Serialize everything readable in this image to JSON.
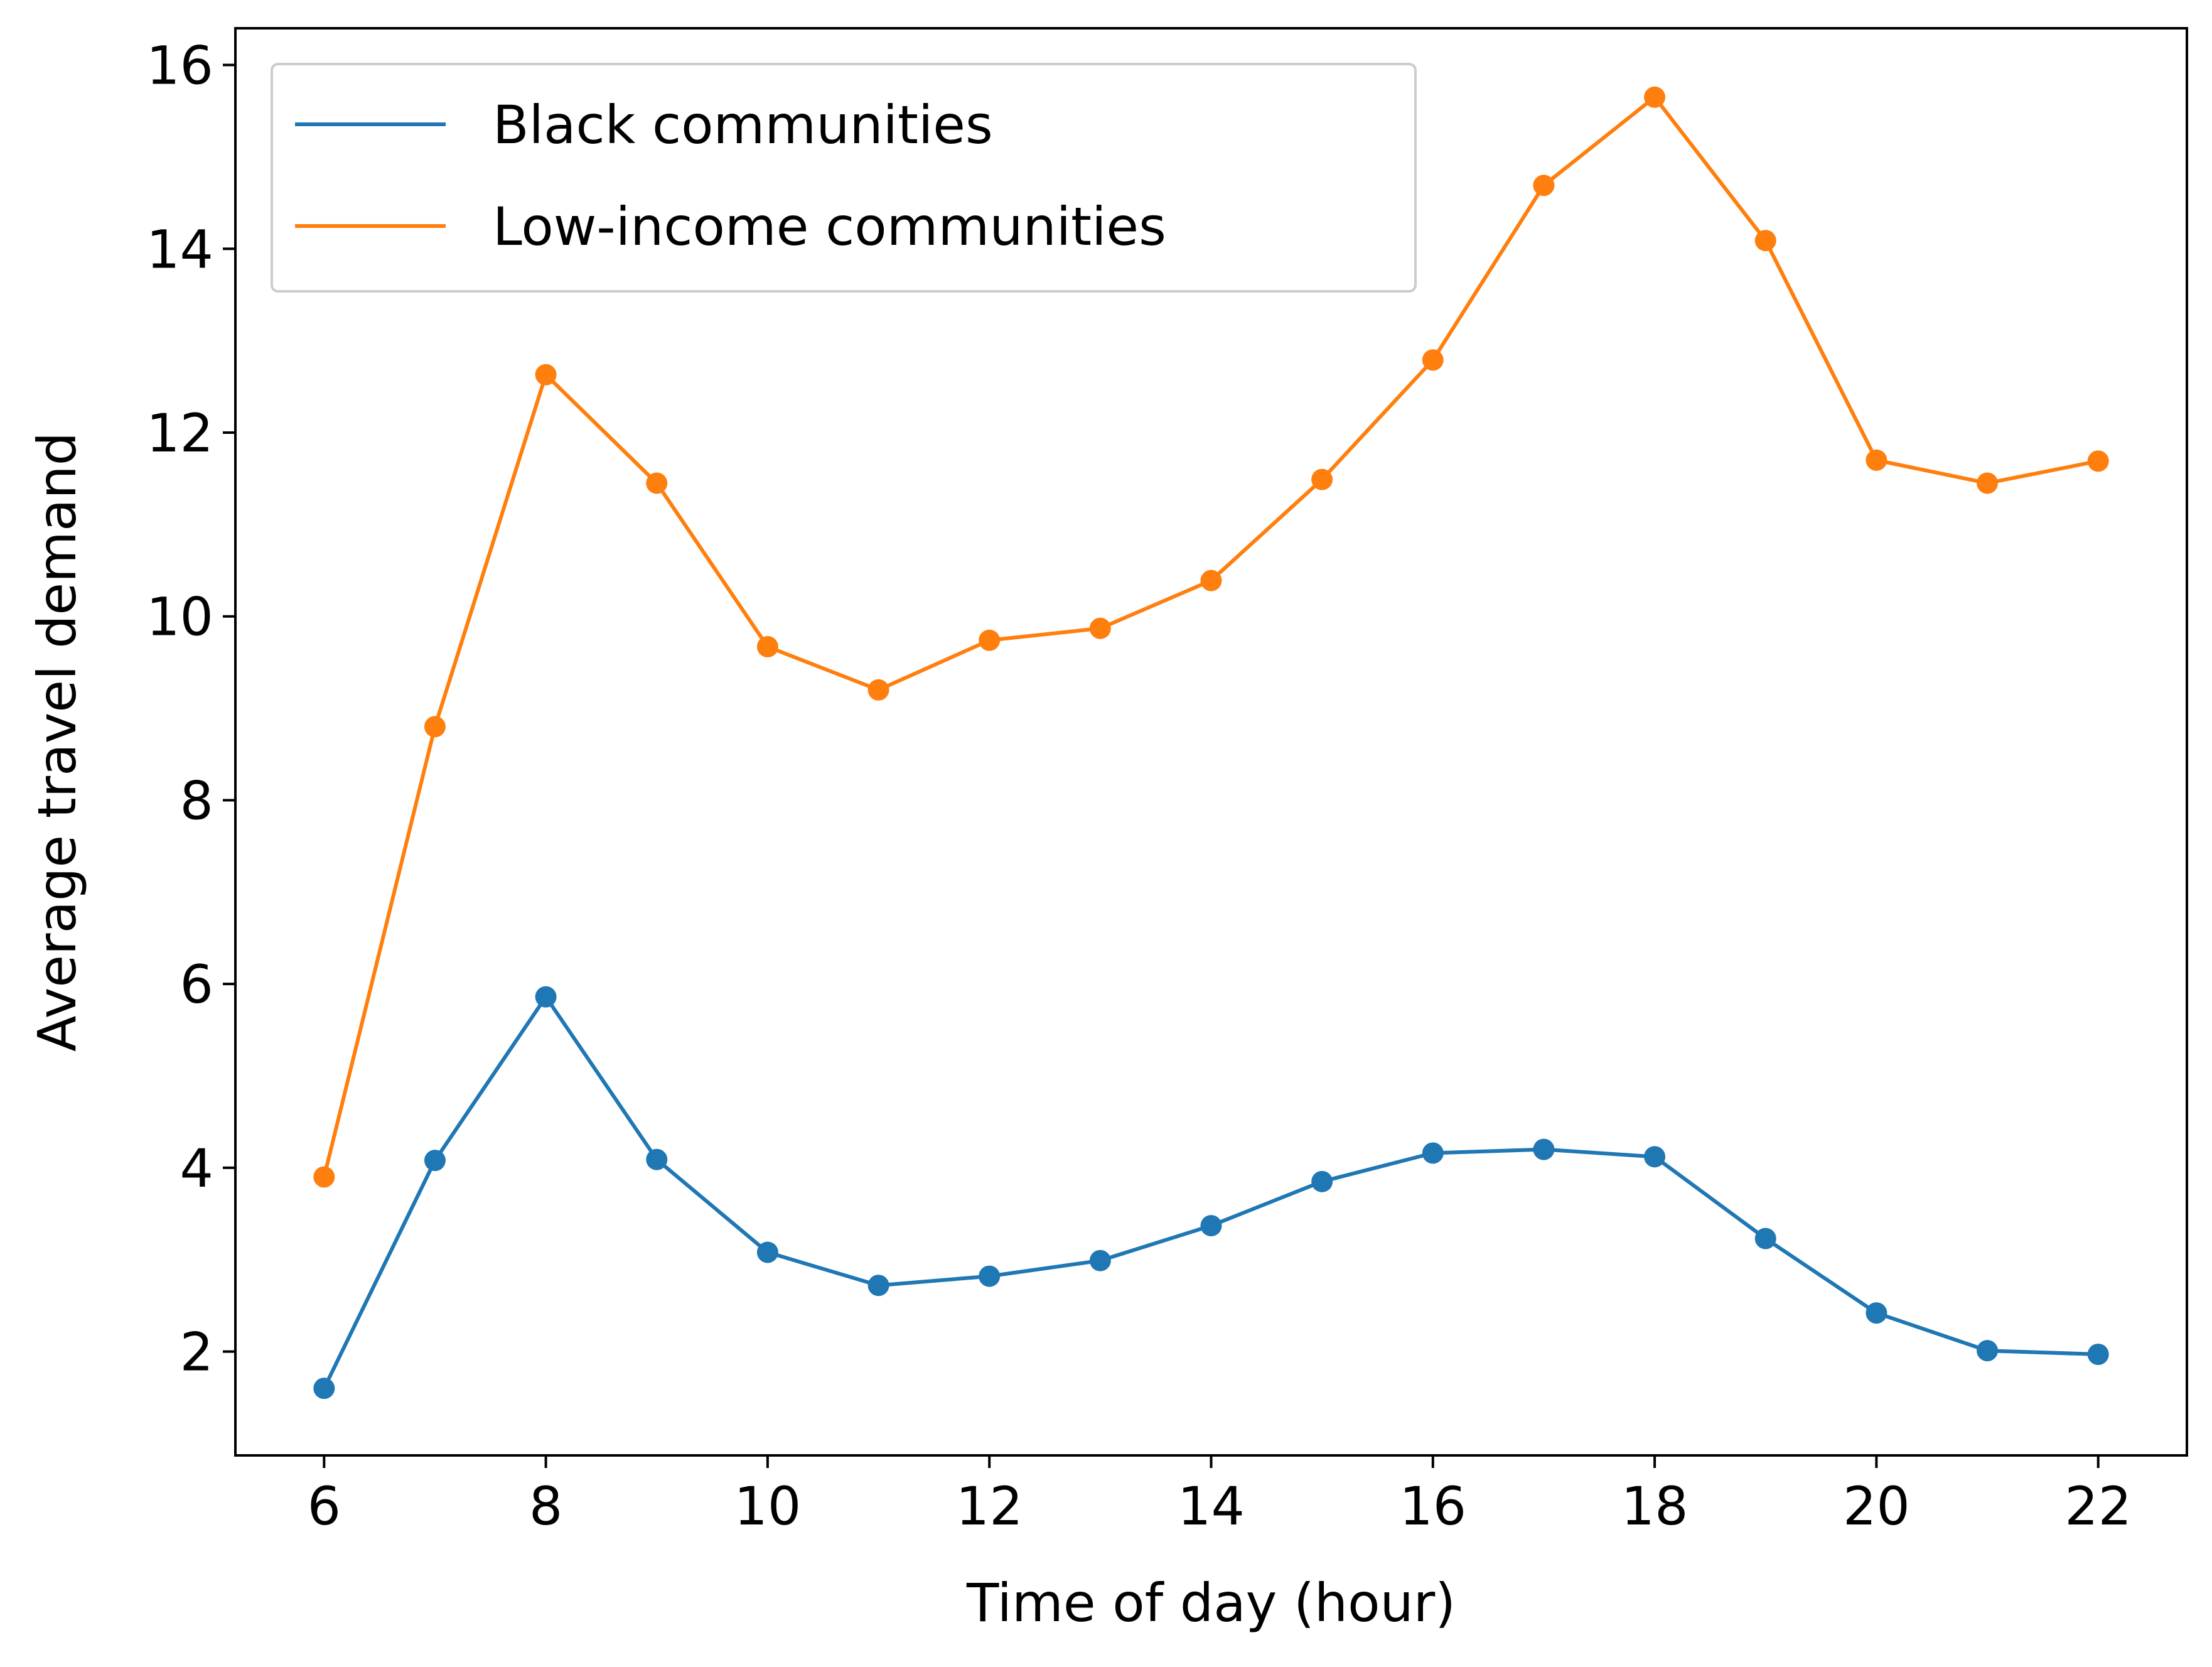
{
  "chart_data": {
    "type": "line",
    "title": "",
    "xlabel": "Time of day (hour)",
    "ylabel": "Average travel demand",
    "xlim": [
      5.2,
      22.8
    ],
    "ylim": [
      0.87,
      16.4
    ],
    "xticks": [
      "6",
      "8",
      "10",
      "12",
      "14",
      "16",
      "18",
      "20",
      "22"
    ],
    "yticks": [
      "2",
      "4",
      "6",
      "8",
      "10",
      "12",
      "14",
      "16"
    ],
    "grid": false,
    "legend_position": "top-left",
    "x": [
      6,
      7,
      8,
      9,
      10,
      11,
      12,
      13,
      14,
      15,
      16,
      17,
      18,
      19,
      20,
      21,
      22
    ],
    "series": [
      {
        "name": "Black communities",
        "color": "#1f77b4",
        "marker": "circle",
        "values": [
          1.6,
          4.08,
          5.86,
          4.09,
          3.08,
          2.72,
          2.82,
          2.99,
          3.37,
          3.85,
          4.16,
          4.2,
          4.12,
          3.23,
          2.42,
          2.01,
          1.97
        ]
      },
      {
        "name": "Low-income communities",
        "color": "#ff7f0e",
        "marker": "circle",
        "values": [
          3.9,
          8.8,
          12.63,
          11.45,
          9.67,
          9.2,
          9.74,
          9.87,
          10.39,
          11.49,
          12.79,
          14.69,
          15.65,
          14.09,
          11.7,
          11.45,
          11.69
        ]
      }
    ]
  }
}
